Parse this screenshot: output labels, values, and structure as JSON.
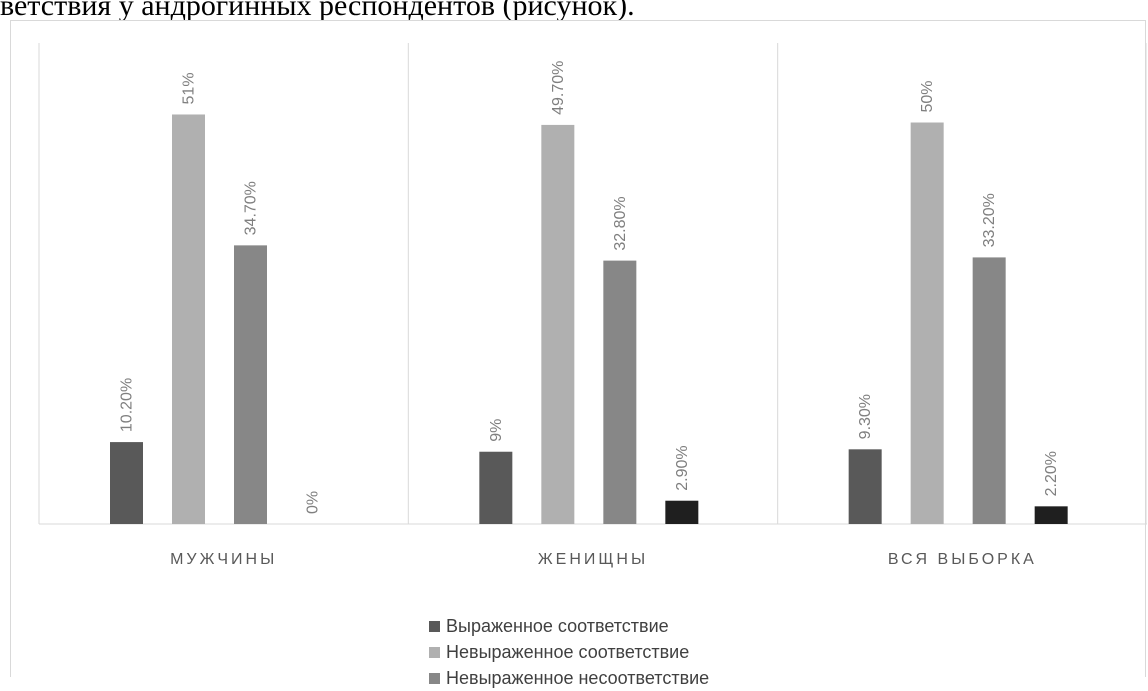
{
  "heading_fragment": "ветствия у андрогинных респондентов (рисунок).",
  "colors": {
    "s1": "#595959",
    "s2": "#b0b0b0",
    "s3": "#878787",
    "s4": "#1f1f1f"
  },
  "chart_data": {
    "type": "bar",
    "categories": [
      "МУЖЧИНЫ",
      "ЖЕНИЩНЫ",
      "ВСЯ ВЫБОРКА"
    ],
    "series": [
      {
        "name": "Выраженное соответствие",
        "values": [
          10.2,
          9.0,
          9.3
        ],
        "labels": [
          "10.20%",
          "9%",
          "9.30%"
        ]
      },
      {
        "name": "Невыраженное соответствие",
        "values": [
          51.0,
          49.7,
          50.0
        ],
        "labels": [
          "51%",
          "49.70%",
          "50%"
        ]
      },
      {
        "name": "Невыраженное несоответствие",
        "values": [
          34.7,
          32.8,
          33.2
        ],
        "labels": [
          "34.70%",
          "32.80%",
          "33.20%"
        ]
      },
      {
        "name": "",
        "values": [
          0.0,
          2.9,
          2.2
        ],
        "labels": [
          "0%",
          "2.90%",
          "2.20%"
        ]
      }
    ],
    "ylim": [
      0,
      60
    ],
    "legend_position": "bottom",
    "grid": false
  }
}
